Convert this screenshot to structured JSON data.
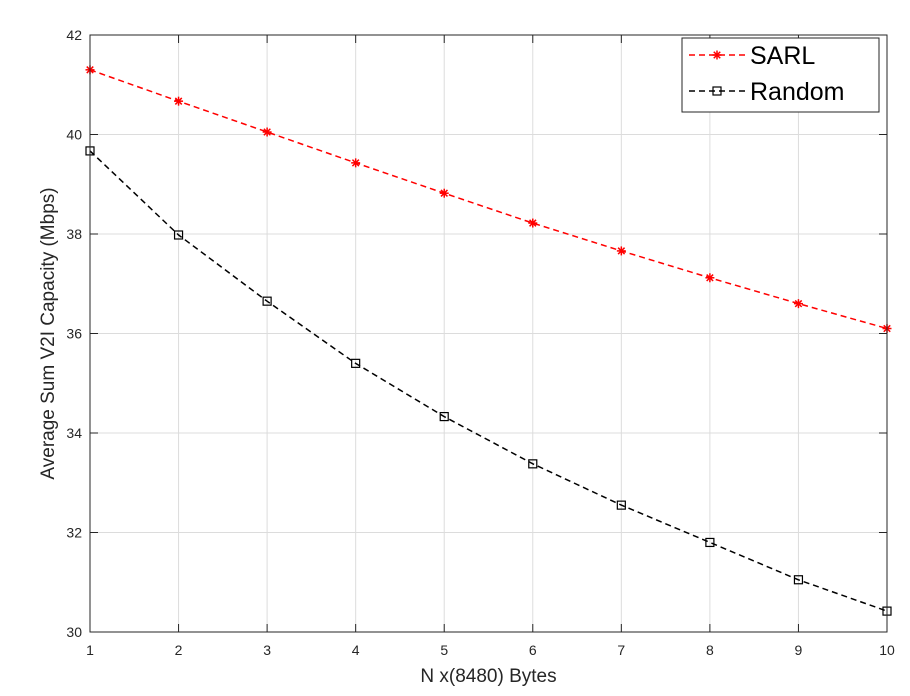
{
  "chart_data": {
    "type": "line",
    "title": "",
    "xlabel": "N x(8480) Bytes",
    "ylabel": "Average Sum V2I Capacity (Mbps)",
    "xlim": [
      1,
      10
    ],
    "ylim": [
      30,
      42
    ],
    "xticks": [
      1,
      2,
      3,
      4,
      5,
      6,
      7,
      8,
      9,
      10
    ],
    "yticks": [
      30,
      32,
      34,
      36,
      38,
      40,
      42
    ],
    "grid": true,
    "legend_position": "top-right",
    "x": [
      1,
      2,
      3,
      4,
      5,
      6,
      7,
      8,
      9,
      10
    ],
    "series": [
      {
        "name": "SARL",
        "color": "#ff0000",
        "marker": "asterisk",
        "line_style": "dashed",
        "values": [
          41.3,
          40.67,
          40.05,
          39.43,
          38.82,
          38.22,
          37.66,
          37.12,
          36.6,
          36.1
        ]
      },
      {
        "name": "Random",
        "color": "#000000",
        "marker": "square",
        "line_style": "dashed",
        "values": [
          39.67,
          37.98,
          36.65,
          35.4,
          34.33,
          33.38,
          32.55,
          31.8,
          31.05,
          30.42
        ]
      }
    ]
  }
}
